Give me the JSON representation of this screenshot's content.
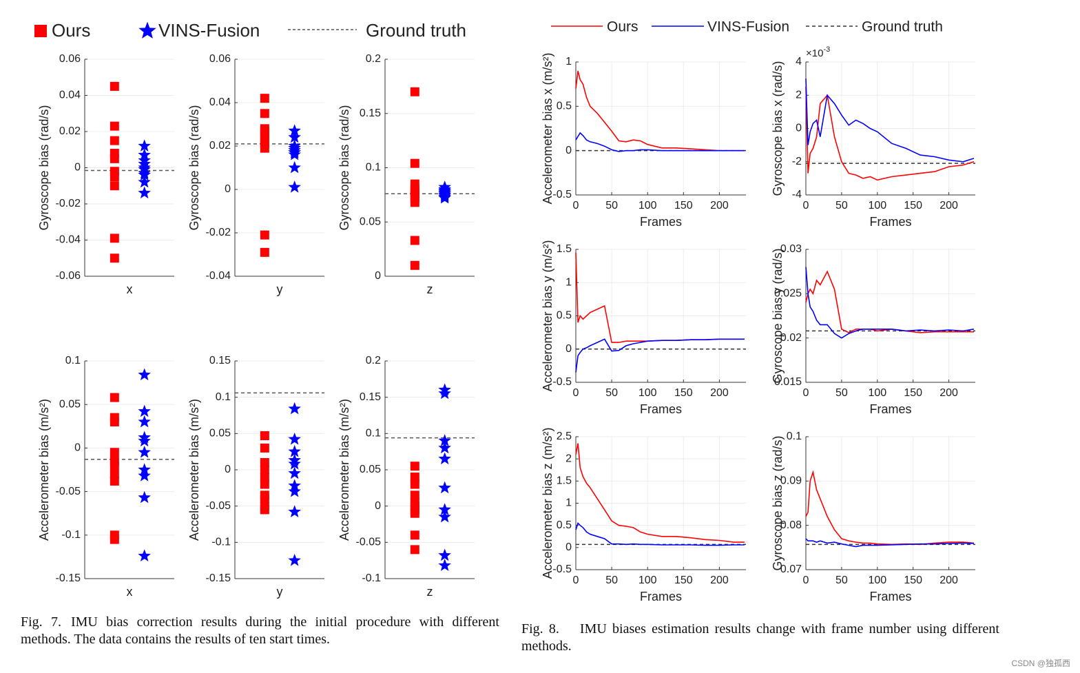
{
  "chart_data": [
    {
      "type": "strip",
      "ylabel": "Gyroscope bias (rad/s)",
      "categories": [
        "x"
      ],
      "ylim": [
        -0.06,
        0.06
      ],
      "yticks": [
        -0.06,
        -0.04,
        -0.02,
        0,
        0.02,
        0.04,
        0.06
      ],
      "grid": true,
      "series": [
        {
          "name": "Ours",
          "color": "#ff0000",
          "marker": "square",
          "values": [
            0.045,
            0.023,
            0.015,
            0.008,
            0.005,
            -0.002,
            -0.005,
            -0.01,
            -0.039,
            -0.05
          ]
        },
        {
          "name": "VINS-Fusion",
          "color": "#0000ff",
          "marker": "star",
          "values": [
            0.012,
            0.007,
            0.004,
            0.002,
            0,
            -0.001,
            -0.003,
            -0.004,
            -0.008,
            -0.014
          ]
        }
      ],
      "reference": {
        "name": "Ground truth",
        "value": -0.0015,
        "color": "#555555"
      }
    },
    {
      "type": "strip",
      "ylabel": "Gyroscope bias (rad/s)",
      "categories": [
        "y"
      ],
      "ylim": [
        -0.04,
        0.06
      ],
      "yticks": [
        -0.04,
        -0.02,
        0,
        0.02,
        0.04,
        0.06
      ],
      "grid": true,
      "series": [
        {
          "name": "Ours",
          "color": "#ff0000",
          "marker": "square",
          "values": [
            0.042,
            0.035,
            0.028,
            0.027,
            0.025,
            0.023,
            0.021,
            0.019,
            -0.021,
            -0.029
          ]
        },
        {
          "name": "VINS-Fusion",
          "color": "#0000ff",
          "marker": "star",
          "values": [
            0.027,
            0.024,
            0.02,
            0.019,
            0.018,
            0.017,
            0.017,
            0.016,
            0.01,
            0.001
          ]
        }
      ],
      "reference": {
        "name": "Ground truth",
        "value": 0.021,
        "color": "#555555"
      }
    },
    {
      "type": "strip",
      "ylabel": "Gyroscope bias (rad/s)",
      "categories": [
        "z"
      ],
      "ylim": [
        0,
        0.2
      ],
      "yticks": [
        0,
        0.05,
        0.1,
        0.15,
        0.2
      ],
      "grid": true,
      "series": [
        {
          "name": "Ours",
          "color": "#ff0000",
          "marker": "square",
          "values": [
            0.17,
            0.104,
            0.085,
            0.08,
            0.077,
            0.075,
            0.072,
            0.068,
            0.033,
            0.01
          ]
        },
        {
          "name": "VINS-Fusion",
          "color": "#0000ff",
          "marker": "star",
          "values": [
            0.082,
            0.08,
            0.079,
            0.078,
            0.077,
            0.076,
            0.075,
            0.074,
            0.073,
            0.072
          ]
        }
      ],
      "reference": {
        "name": "Ground truth",
        "value": 0.076,
        "color": "#555555"
      }
    },
    {
      "type": "strip",
      "ylabel": "Accelerometer bias (m/s²)",
      "categories": [
        "x"
      ],
      "ylim": [
        -0.15,
        0.1
      ],
      "yticks": [
        -0.15,
        -0.1,
        -0.05,
        0,
        0.05,
        0.1
      ],
      "grid": true,
      "series": [
        {
          "name": "Ours",
          "color": "#ff0000",
          "marker": "square",
          "values": [
            0.058,
            0.035,
            0.03,
            -0.005,
            -0.015,
            -0.02,
            -0.03,
            -0.038,
            -0.1,
            -0.105
          ]
        },
        {
          "name": "VINS-Fusion",
          "color": "#0000ff",
          "marker": "star",
          "values": [
            0.084,
            0.042,
            0.03,
            0.012,
            0.008,
            -0.005,
            -0.025,
            -0.032,
            -0.057,
            -0.124
          ]
        }
      ],
      "reference": {
        "name": "Ground truth",
        "value": -0.013,
        "color": "#555555"
      }
    },
    {
      "type": "strip",
      "ylabel": "Accelerometer bias (m/s²)",
      "categories": [
        "y"
      ],
      "ylim": [
        -0.15,
        0.15
      ],
      "yticks": [
        -0.15,
        -0.1,
        -0.05,
        0,
        0.05,
        0.1,
        0.15
      ],
      "grid": true,
      "series": [
        {
          "name": "Ours",
          "color": "#ff0000",
          "marker": "square",
          "values": [
            0.047,
            0.03,
            0.01,
            0,
            -0.01,
            -0.02,
            -0.035,
            -0.04,
            -0.05,
            -0.055
          ]
        },
        {
          "name": "VINS-Fusion",
          "color": "#0000ff",
          "marker": "star",
          "values": [
            0.084,
            0.042,
            0.025,
            0.013,
            0.008,
            -0.005,
            -0.022,
            -0.03,
            -0.058,
            -0.125
          ]
        }
      ],
      "reference": {
        "name": "Ground truth",
        "value": 0.106,
        "color": "#555555"
      }
    },
    {
      "type": "strip",
      "ylabel": "Accelerometer bias (m/s²)",
      "categories": [
        "z"
      ],
      "ylim": [
        -0.1,
        0.2
      ],
      "yticks": [
        -0.1,
        -0.05,
        0,
        0.05,
        0.1,
        0.15,
        0.2
      ],
      "grid": true,
      "series": [
        {
          "name": "Ours",
          "color": "#ff0000",
          "marker": "square",
          "values": [
            0.055,
            0.04,
            0.03,
            0.015,
            0.005,
            0,
            -0.005,
            -0.01,
            -0.04,
            -0.06
          ]
        },
        {
          "name": "VINS-Fusion",
          "color": "#0000ff",
          "marker": "star",
          "values": [
            0.16,
            0.155,
            0.09,
            0.08,
            0.065,
            0.025,
            -0.005,
            -0.015,
            -0.068,
            -0.082
          ]
        }
      ],
      "reference": {
        "name": "Ground truth",
        "value": 0.094,
        "color": "#555555"
      }
    },
    {
      "type": "line",
      "ylabel": "Accelerometer bias x (m/s²)",
      "xlabel": "Frames",
      "xlim": [
        0,
        237
      ],
      "xticks": [
        0,
        50,
        100,
        150,
        200
      ],
      "ylim": [
        -0.5,
        1
      ],
      "yticks": [
        -0.5,
        0,
        0.5,
        1
      ],
      "grid": true,
      "x": [
        0,
        3,
        6,
        10,
        15,
        20,
        30,
        40,
        50,
        60,
        70,
        80,
        90,
        100,
        120,
        140,
        160,
        180,
        200,
        220,
        235
      ],
      "series": [
        {
          "name": "Ours",
          "color": "#ff0000",
          "values": [
            0.7,
            0.9,
            0.8,
            0.75,
            0.6,
            0.5,
            0.42,
            0.32,
            0.22,
            0.11,
            0.1,
            0.12,
            0.11,
            0.07,
            0.03,
            0.03,
            0.02,
            0.01,
            0,
            0,
            0
          ]
        },
        {
          "name": "VINS-Fusion",
          "color": "#0000ff",
          "values": [
            0.12,
            0.16,
            0.2,
            0.17,
            0.12,
            0.1,
            0.08,
            0.05,
            0.01,
            -0.01,
            0,
            0,
            0.01,
            0.01,
            0,
            0,
            0,
            0,
            0,
            0,
            0
          ]
        }
      ],
      "reference": {
        "name": "Ground truth",
        "value": 0,
        "color": "#333333"
      }
    },
    {
      "type": "line",
      "ylabel": "Gyroscope bias x (rad/s)",
      "xlabel": "Frames",
      "y_scale": {
        "base": "×10",
        "exponent": "-3"
      },
      "xlim": [
        0,
        237
      ],
      "xticks": [
        0,
        50,
        100,
        150,
        200
      ],
      "ylim": [
        -4,
        4
      ],
      "yticks": [
        -4,
        -2,
        0,
        2,
        4
      ],
      "grid": true,
      "x": [
        0,
        3,
        6,
        10,
        15,
        20,
        30,
        40,
        50,
        60,
        70,
        80,
        90,
        100,
        120,
        140,
        160,
        180,
        200,
        220,
        235
      ],
      "series": [
        {
          "name": "Ours",
          "color": "#ff0000",
          "values": [
            2.5,
            -2.7,
            -1.5,
            -1.2,
            -0.5,
            1.5,
            2,
            -0.5,
            -2,
            -2.7,
            -2.8,
            -3,
            -2.9,
            -3.1,
            -2.9,
            -2.8,
            -2.7,
            -2.6,
            -2.3,
            -2.2,
            -2
          ]
        },
        {
          "name": "VINS-Fusion",
          "color": "#0000ff",
          "values": [
            3,
            -1,
            -0.2,
            0.3,
            0.5,
            -0.5,
            2,
            1.5,
            0.8,
            0.2,
            0.5,
            0.3,
            0,
            -0.2,
            -0.9,
            -1.2,
            -1.6,
            -1.7,
            -1.9,
            -2,
            -1.8
          ]
        }
      ],
      "reference": {
        "name": "Ground truth",
        "value": -2.1,
        "color": "#333333"
      }
    },
    {
      "type": "line",
      "ylabel": "Accelerometer bias y (m/s²)",
      "xlabel": "Frames",
      "xlim": [
        0,
        237
      ],
      "xticks": [
        0,
        50,
        100,
        150,
        200
      ],
      "ylim": [
        -0.5,
        1.5
      ],
      "yticks": [
        -0.5,
        0,
        0.5,
        1,
        1.5
      ],
      "grid": true,
      "x": [
        0,
        3,
        6,
        10,
        15,
        20,
        30,
        40,
        50,
        60,
        70,
        80,
        90,
        100,
        120,
        140,
        160,
        180,
        200,
        220,
        235
      ],
      "series": [
        {
          "name": "Ours",
          "color": "#ff0000",
          "values": [
            1.45,
            0.4,
            0.5,
            0.45,
            0.5,
            0.55,
            0.6,
            0.65,
            0.1,
            0.1,
            0.12,
            0.12,
            0.12,
            0.12,
            0.13,
            0.13,
            0.14,
            0.14,
            0.15,
            0.15,
            0.15
          ]
        },
        {
          "name": "VINS-Fusion",
          "color": "#0000ff",
          "values": [
            -0.35,
            -0.1,
            -0.05,
            0,
            0.02,
            0.05,
            0.1,
            0.15,
            -0.03,
            -0.02,
            0.05,
            0.08,
            0.1,
            0.12,
            0.13,
            0.13,
            0.14,
            0.14,
            0.15,
            0.15,
            0.15
          ]
        }
      ],
      "reference": {
        "name": "Ground truth",
        "value": 0,
        "color": "#333333"
      }
    },
    {
      "type": "line",
      "ylabel": "Gyroscope bias y (rad/s)",
      "xlabel": "Frames",
      "xlim": [
        0,
        237
      ],
      "xticks": [
        0,
        50,
        100,
        150,
        200
      ],
      "ylim": [
        0.015,
        0.03
      ],
      "yticks": [
        0.015,
        0.02,
        0.025,
        0.03
      ],
      "grid": true,
      "x": [
        0,
        3,
        6,
        10,
        15,
        20,
        30,
        40,
        50,
        60,
        70,
        80,
        90,
        100,
        120,
        140,
        160,
        180,
        200,
        220,
        235
      ],
      "series": [
        {
          "name": "Ours",
          "color": "#ff0000",
          "values": [
            0.024,
            0.025,
            0.0255,
            0.025,
            0.0265,
            0.026,
            0.0275,
            0.0255,
            0.021,
            0.0206,
            0.021,
            0.021,
            0.021,
            0.0208,
            0.021,
            0.0208,
            0.0206,
            0.0207,
            0.0207,
            0.0207,
            0.0207
          ]
        },
        {
          "name": "VINS-Fusion",
          "color": "#0000ff",
          "values": [
            0.028,
            0.025,
            0.0235,
            0.023,
            0.022,
            0.0215,
            0.0215,
            0.0205,
            0.02,
            0.0205,
            0.0208,
            0.021,
            0.021,
            0.021,
            0.021,
            0.0208,
            0.0209,
            0.0208,
            0.0209,
            0.0208,
            0.021
          ]
        }
      ],
      "reference": {
        "name": "Ground truth",
        "value": 0.0208,
        "color": "#333333"
      }
    },
    {
      "type": "line",
      "ylabel": "Accelerometer bias z (m/s²)",
      "xlabel": "Frames",
      "xlim": [
        0,
        237
      ],
      "xticks": [
        0,
        50,
        100,
        150,
        200
      ],
      "ylim": [
        -0.5,
        2.5
      ],
      "yticks": [
        -0.5,
        0,
        0.5,
        1,
        1.5,
        2,
        2.5
      ],
      "grid": true,
      "x": [
        0,
        3,
        6,
        10,
        15,
        20,
        30,
        40,
        50,
        60,
        70,
        80,
        90,
        100,
        120,
        140,
        160,
        180,
        200,
        220,
        235
      ],
      "series": [
        {
          "name": "Ours",
          "color": "#ff0000",
          "values": [
            2.1,
            2.35,
            1.8,
            1.6,
            1.45,
            1.35,
            1.1,
            0.85,
            0.6,
            0.5,
            0.48,
            0.45,
            0.35,
            0.3,
            0.25,
            0.25,
            0.22,
            0.18,
            0.16,
            0.12,
            0.12
          ]
        },
        {
          "name": "VINS-Fusion",
          "color": "#0000ff",
          "values": [
            0.4,
            0.55,
            0.5,
            0.45,
            0.35,
            0.3,
            0.25,
            0.2,
            0.08,
            0.08,
            0.07,
            0.08,
            0.07,
            0.07,
            0.06,
            0.06,
            0.06,
            0.05,
            0.05,
            0.06,
            0.06
          ]
        }
      ],
      "reference": {
        "name": "Ground truth",
        "value": 0.07,
        "color": "#333333"
      }
    },
    {
      "type": "line",
      "ylabel": "Gyroscope bias z (rad/s)",
      "xlabel": "Frames",
      "xlim": [
        0,
        237
      ],
      "xticks": [
        0,
        50,
        100,
        150,
        200
      ],
      "ylim": [
        0.07,
        0.1
      ],
      "yticks": [
        0.07,
        0.08,
        0.09,
        0.1
      ],
      "grid": true,
      "x": [
        0,
        3,
        6,
        10,
        15,
        20,
        30,
        40,
        50,
        60,
        70,
        80,
        90,
        100,
        120,
        140,
        160,
        180,
        200,
        220,
        235
      ],
      "series": [
        {
          "name": "Ours",
          "color": "#ff0000",
          "values": [
            0.082,
            0.083,
            0.09,
            0.092,
            0.088,
            0.086,
            0.082,
            0.079,
            0.077,
            0.0765,
            0.0762,
            0.076,
            0.076,
            0.0758,
            0.0757,
            0.0758,
            0.0757,
            0.076,
            0.0762,
            0.0762,
            0.076
          ]
        },
        {
          "name": "VINS-Fusion",
          "color": "#0000ff",
          "values": [
            0.077,
            0.0765,
            0.0765,
            0.0765,
            0.0762,
            0.0765,
            0.076,
            0.0762,
            0.0758,
            0.0755,
            0.0752,
            0.0755,
            0.0755,
            0.0755,
            0.0756,
            0.0757,
            0.0758,
            0.0758,
            0.0759,
            0.076,
            0.0759
          ]
        }
      ],
      "reference": {
        "name": "Ground truth",
        "value": 0.0757,
        "color": "#333333"
      }
    }
  ],
  "captions": [
    {
      "label": "Fig. 7.",
      "text": "IMU bias correction results during the initial procedure with different methods. The data contains the results of ten start times."
    },
    {
      "label": "Fig. 8.",
      "text": "IMU biases estimation results change with frame number using different methods."
    }
  ],
  "watermark": "CSDN @独孤西"
}
